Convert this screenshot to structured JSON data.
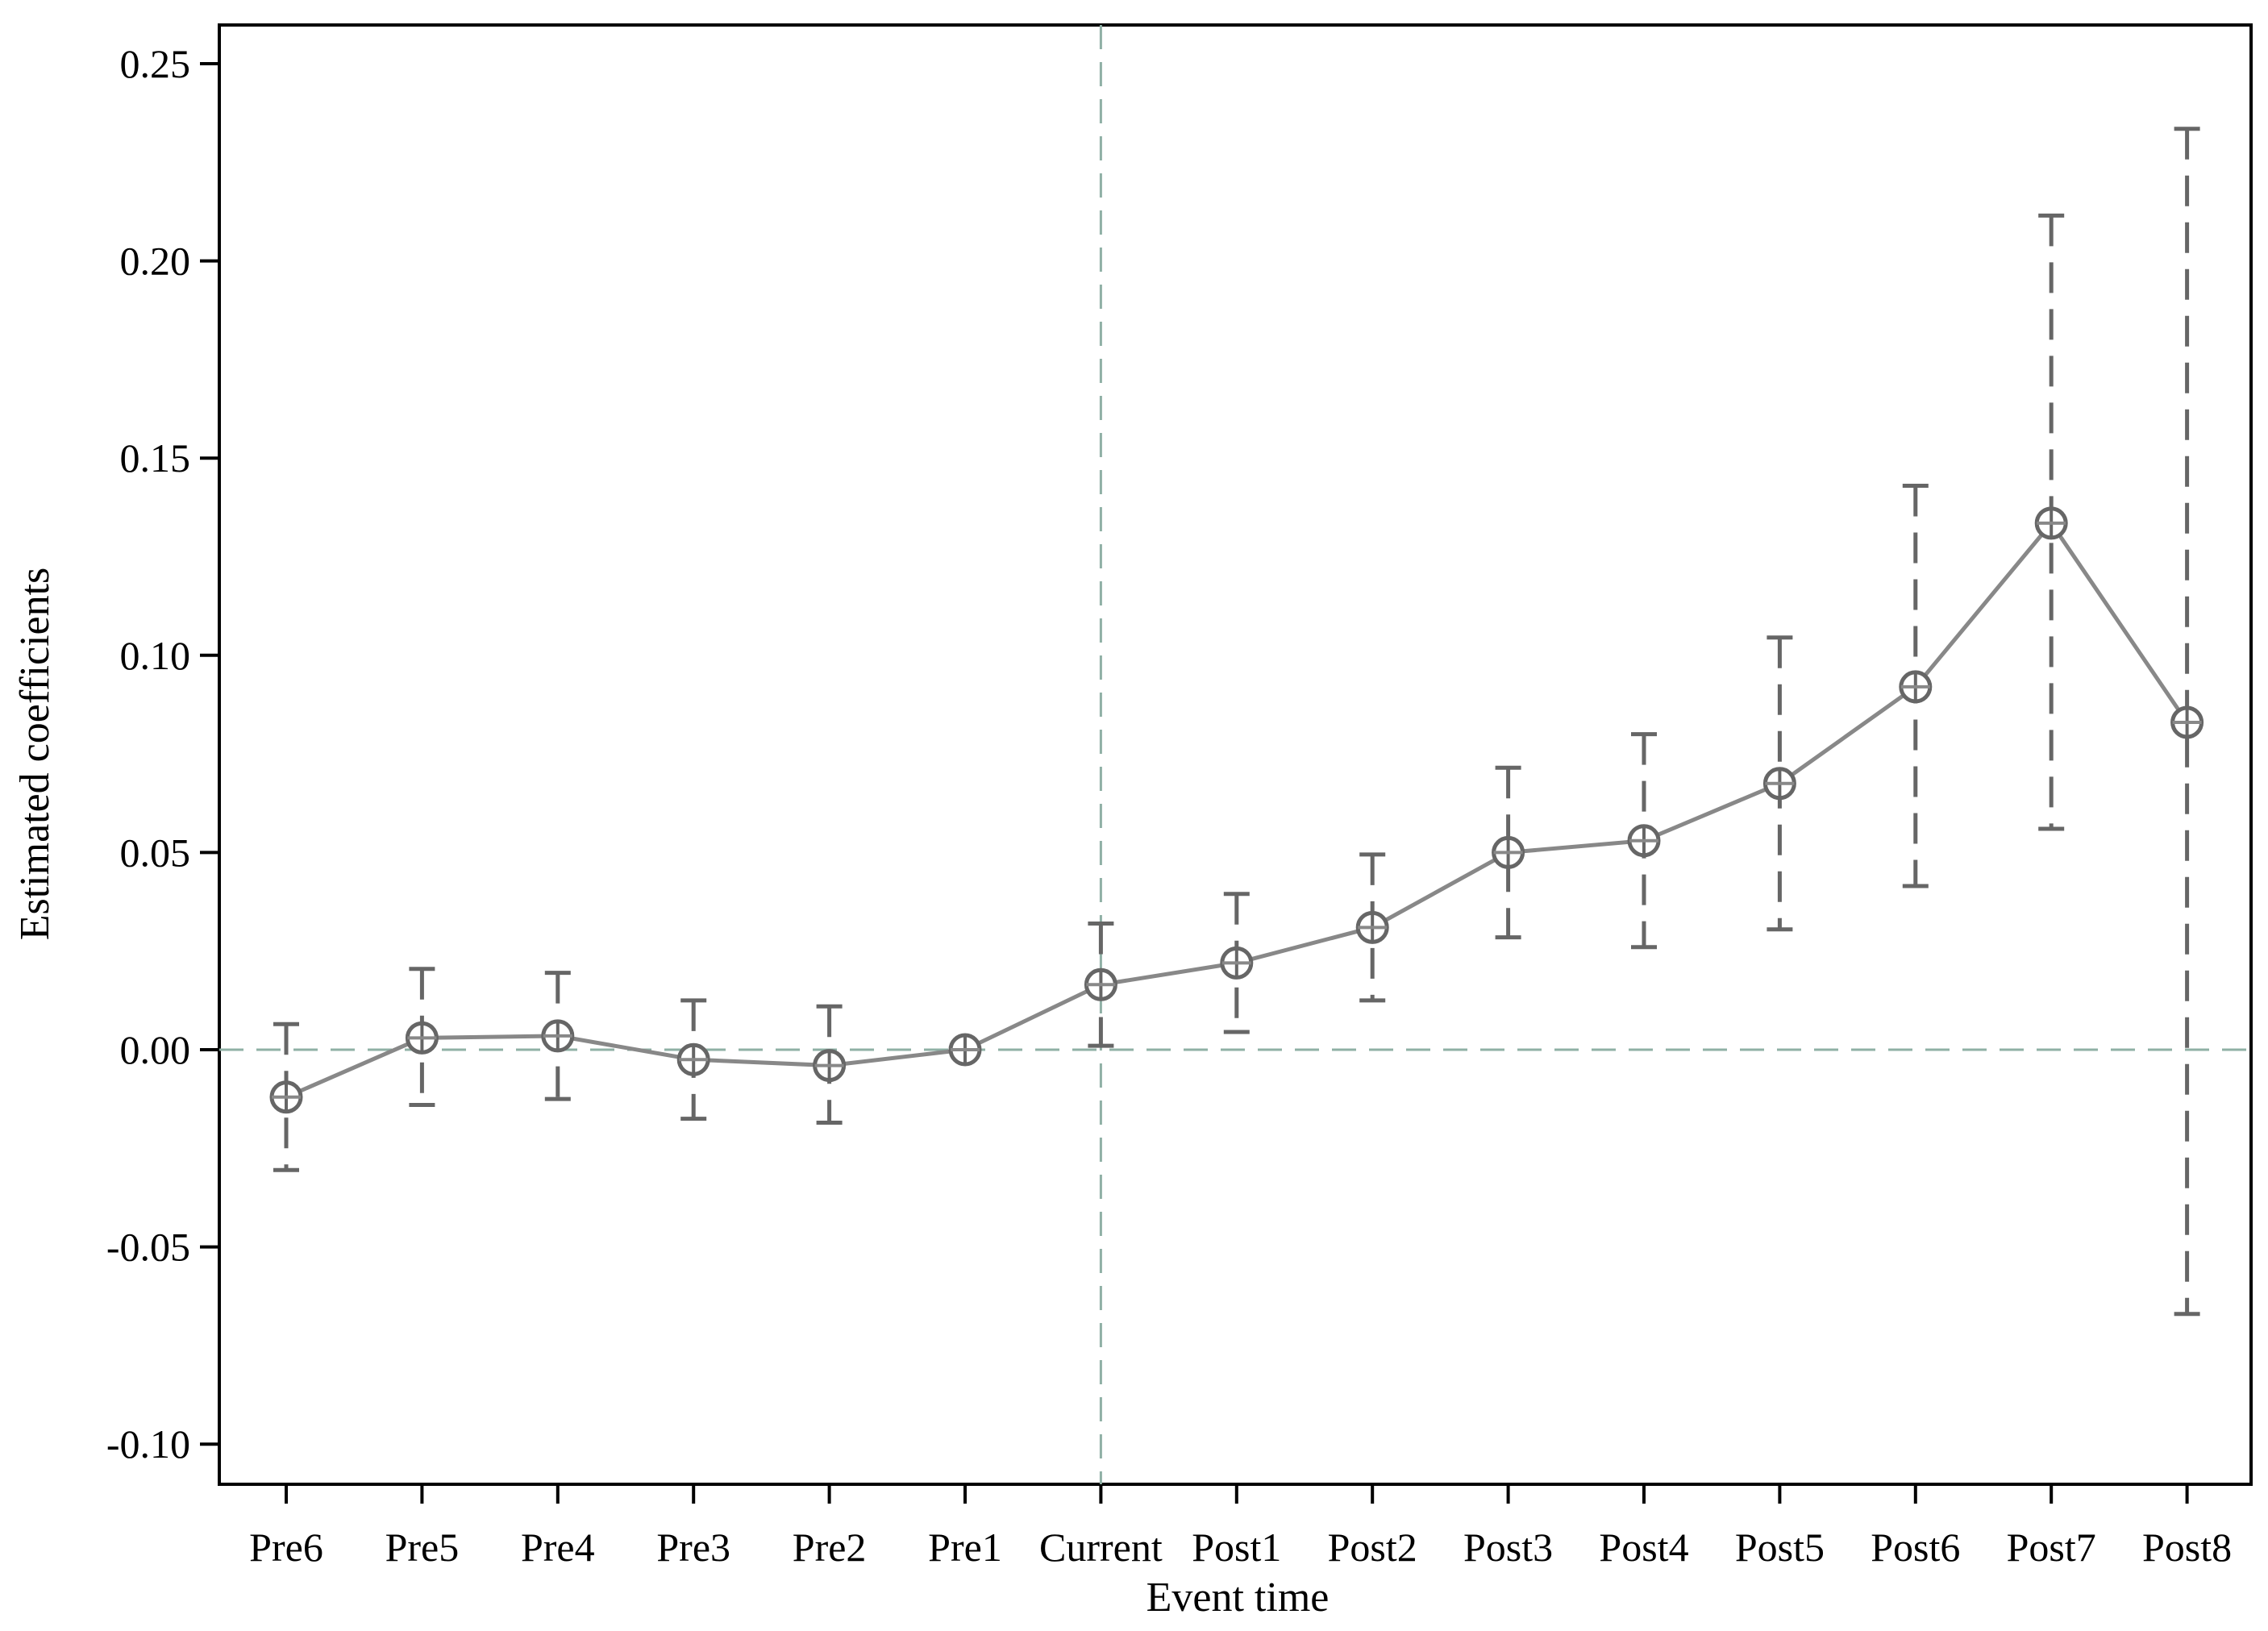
{
  "chart_data": {
    "type": "line",
    "title": "",
    "xlabel": "Event time",
    "ylabel": "Estimated coefficients",
    "categories": [
      "Pre6",
      "Pre5",
      "Pre4",
      "Pre3",
      "Pre2",
      "Pre1",
      "Current",
      "Post1",
      "Post2",
      "Post3",
      "Post4",
      "Post5",
      "Post6",
      "Post7",
      "Post8"
    ],
    "series": [
      {
        "values": [
          -0.012,
          0.003,
          0.0035,
          -0.0025,
          -0.004,
          0.0,
          0.0165,
          0.022,
          0.031,
          0.05,
          0.053,
          0.0675,
          0.092,
          0.1335,
          0.083
        ],
        "ci_lower": [
          -0.0305,
          -0.014,
          -0.0125,
          -0.0175,
          -0.0185,
          0.0,
          0.001,
          0.0045,
          0.0125,
          0.0285,
          0.026,
          0.0305,
          0.0415,
          0.056,
          -0.067
        ],
        "ci_upper": [
          0.0065,
          0.0205,
          0.0195,
          0.0125,
          0.011,
          0.0,
          0.032,
          0.0395,
          0.0495,
          0.0715,
          0.08,
          0.1045,
          0.143,
          0.2115,
          0.2335
        ]
      }
    ],
    "ylim": [
      -0.11,
      0.26
    ],
    "yticks": [
      -0.1,
      -0.05,
      0.0,
      0.05,
      0.1,
      0.15,
      0.2,
      0.25
    ],
    "ytick_labels": [
      "-0.10",
      "-0.05",
      "0.00",
      "0.05",
      "0.10",
      "0.15",
      "0.20",
      "0.25"
    ],
    "reference_lines": {
      "y": 0.0,
      "x_category": "Current"
    },
    "grid": false,
    "legend": "none",
    "colors": {
      "line": "#888888",
      "error_bar": "#666666",
      "reference": "#8fb0a5",
      "axis": "#000000"
    }
  }
}
